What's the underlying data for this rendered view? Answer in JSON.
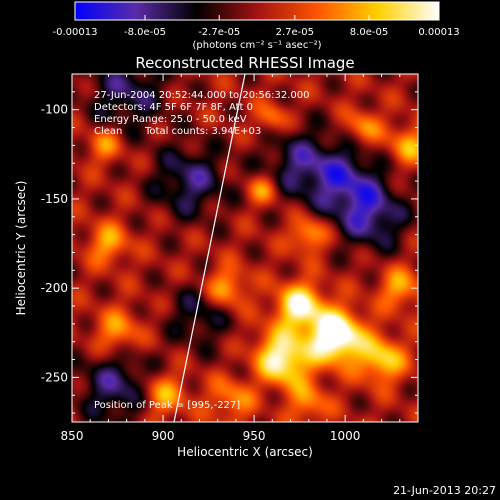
{
  "chart_data": {
    "type": "heatmap",
    "title": "Reconstructed RHESSI Image",
    "xlabel": "Heliocentric X (arcsec)",
    "ylabel": "Heliocentric Y (arcsec)",
    "xlim": [
      850,
      1040
    ],
    "ylim": [
      -275,
      -80
    ],
    "x_ticks": [
      850,
      900,
      950,
      1000
    ],
    "y_ticks": [
      -100,
      -150,
      -200,
      -250
    ],
    "x_tick_labels": [
      "850",
      "900",
      "950",
      "1000"
    ],
    "y_tick_labels": [
      "-100",
      "-150",
      "-200",
      "-250"
    ],
    "grid": false,
    "colorbar": {
      "range": [
        -0.00013,
        0.00013
      ],
      "tick_values": [
        -0.00013,
        -8e-05,
        -2.7e-05,
        2.7e-05,
        8e-05,
        0.00013
      ],
      "tick_labels": [
        "-0.00013",
        "-8.0e-05",
        "-2.7e-05",
        "2.7e-05",
        "8.0e-05",
        "0.00013"
      ],
      "unit_label": "(photons cm⁻² s⁻¹ asec⁻²)",
      "colormap_stops": [
        "#0000ff",
        "#5a2ca8",
        "#000000",
        "#a31212",
        "#ff5500",
        "#ffd000",
        "#ffffff"
      ]
    },
    "annotations": [
      "27-Jun-2004 20:52:44.000 to 20:56:32.000",
      "Detectors: 4F 5F 6F 7F 8F, Att 0",
      "Energy Range: 25.0 - 50.0 keV",
      "Clean",
      "Total counts: 3.94E+03",
      "Position of Peak = [995,-227]"
    ],
    "peak_position": [
      995,
      -227
    ],
    "limb_curve": {
      "x": [
        906,
        911,
        916,
        921,
        926,
        931,
        936,
        941,
        945
      ],
      "y": [
        -275,
        -250,
        -225,
        -200,
        -175,
        -150,
        -125,
        -100,
        -80
      ]
    },
    "blobs": {
      "x": [
        995,
        965,
        975,
        1020,
        940,
        900,
        875,
        935,
        870,
        980,
        955,
        1035,
        868,
        960,
        1010,
        1030,
        980,
        1000,
        875,
        975,
        880,
        915,
        1015,
        945,
        920
      ],
      "y": [
        -227,
        -240,
        -210,
        -240,
        -260,
        -260,
        -225,
        -200,
        -175,
        -170,
        -145,
        -120,
        -120,
        -105,
        -110,
        -200,
        -265,
        -140,
        -255,
        -130,
        -90,
        -140,
        -160,
        -255,
        -215
      ],
      "amplitude": [
        1.3,
        1.05,
        0.95,
        0.75,
        0.8,
        0.6,
        0.55,
        0.6,
        0.55,
        0.6,
        0.5,
        0.55,
        0.45,
        0.45,
        0.5,
        0.55,
        0.45,
        -0.6,
        -0.55,
        -0.5,
        -0.5,
        -0.55,
        -0.6,
        -0.45,
        -0.4
      ],
      "sigma": [
        10,
        11,
        9,
        9,
        10,
        9,
        9,
        8,
        8,
        7,
        6,
        8,
        7,
        6,
        7,
        8,
        8,
        14,
        15,
        14,
        15,
        14,
        13,
        12,
        12
      ]
    }
  },
  "footer": {
    "timestamp": "21-Jun-2013 20:27"
  }
}
